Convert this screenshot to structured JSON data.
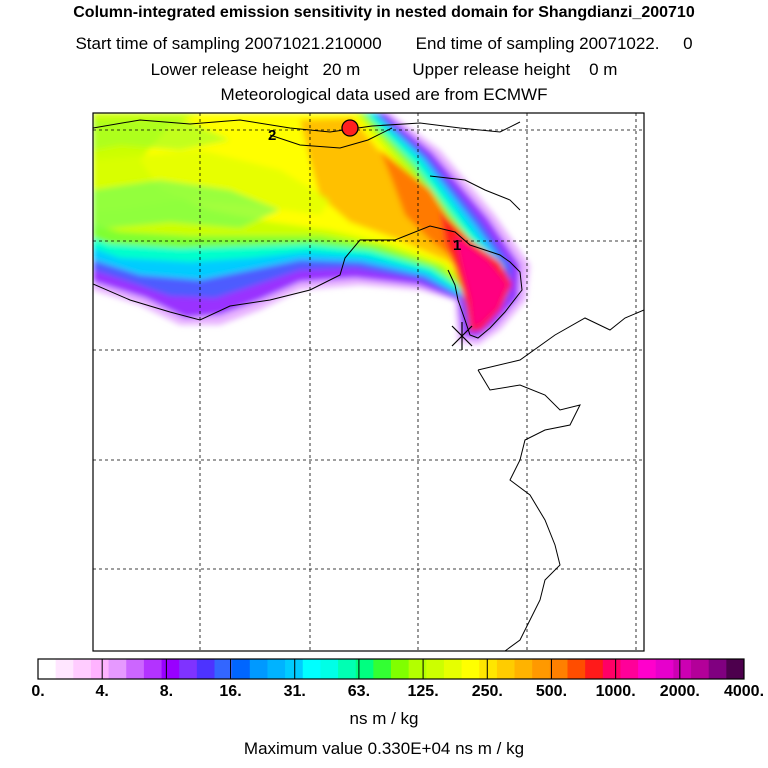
{
  "title": {
    "line1": "Column-integrated emission sensitivity in nested domain for Shangdianzi_200710",
    "start_label": "Start time of sampling 20071021.210000",
    "end_label": "End time of sampling 20071022.     0",
    "lower_label": "Lower release height   20 m",
    "upper_label": "Upper release height    0 m",
    "met_label": "Meteorological data used are from ECMWF"
  },
  "map": {
    "trajectory_labels": [
      "2",
      "1"
    ],
    "receptor_marker": "red-circle",
    "release_marker": "star"
  },
  "colorbar": {
    "tick_labels": [
      "0.",
      "4.",
      "8.",
      "16.",
      "31.",
      "63.",
      "125.",
      "250.",
      "500.",
      "1000.",
      "2000.",
      "4000."
    ],
    "colors": [
      "#ffffff",
      "#ffe6ff",
      "#ffccff",
      "#ffb3ff",
      "#e699ff",
      "#cc66ff",
      "#b333ff",
      "#9900ff",
      "#7f33ff",
      "#4d33ff",
      "#3366ff",
      "#0066ff",
      "#0099ff",
      "#00b3ff",
      "#00ccff",
      "#00ffff",
      "#00ffe6",
      "#00ffb3",
      "#00ff80",
      "#33ff33",
      "#80ff00",
      "#b3ff00",
      "#ccff00",
      "#e6ff00",
      "#ffff00",
      "#ffe600",
      "#ffcc00",
      "#ffb300",
      "#ff9900",
      "#ff8000",
      "#ff4d00",
      "#ff1a1a",
      "#ff0066",
      "#ff0099",
      "#ff00cc",
      "#e600cc",
      "#cc00b3",
      "#b30099",
      "#800080",
      "#4d004d"
    ],
    "unit": "ns m / kg",
    "max_label": "Maximum value  0.330E+04 ns m / kg"
  }
}
